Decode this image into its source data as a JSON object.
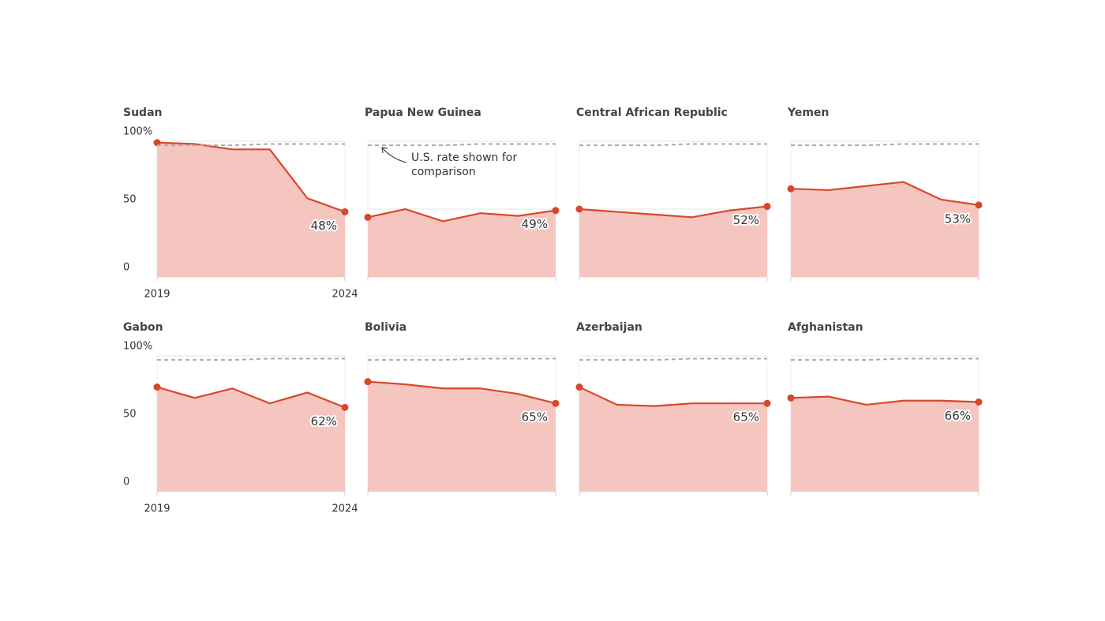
{
  "chart_data": [
    {
      "type": "area",
      "title": "Sudan",
      "x": [
        2019,
        2020,
        2021,
        2022,
        2023,
        2024
      ],
      "xticks": [
        2019,
        2024
      ],
      "ylim": [
        0,
        100
      ],
      "yticks": [
        {
          "value": 100,
          "label": "100%"
        },
        50,
        0
      ],
      "grid": true,
      "series": [
        {
          "color": "#d9472b",
          "values": [
            99,
            98,
            94,
            94,
            58,
            48
          ],
          "value_labels": [
            null,
            null,
            null,
            null,
            null,
            "48%"
          ]
        },
        {
          "color": "#aaaaaa",
          "dashed": true,
          "values": [
            97,
            97,
            97,
            98,
            98,
            98
          ]
        }
      ]
    },
    {
      "type": "area",
      "title": "Papua New Guinea",
      "x": [
        2019,
        2020,
        2021,
        2022,
        2023,
        2024
      ],
      "ylim": [
        0,
        100
      ],
      "grid": true,
      "annotation": "U.S. rate shown for comparison",
      "series": [
        {
          "color": "#d9472b",
          "values": [
            44,
            50,
            41,
            47,
            45,
            49
          ],
          "value_labels": [
            null,
            null,
            null,
            null,
            null,
            "49%"
          ]
        },
        {
          "color": "#aaaaaa",
          "dashed": true,
          "values": [
            97,
            97,
            97,
            98,
            98,
            98
          ]
        }
      ]
    },
    {
      "type": "area",
      "title": "Central African Republic",
      "x": [
        2019,
        2020,
        2021,
        2022,
        2023,
        2024
      ],
      "ylim": [
        0,
        100
      ],
      "grid": true,
      "series": [
        {
          "color": "#d9472b",
          "values": [
            50,
            48,
            46,
            44,
            49,
            52
          ],
          "value_labels": [
            null,
            null,
            null,
            null,
            null,
            "52%"
          ]
        },
        {
          "color": "#aaaaaa",
          "dashed": true,
          "values": [
            97,
            97,
            97,
            98,
            98,
            98
          ]
        }
      ]
    },
    {
      "type": "area",
      "title": "Yemen",
      "x": [
        2019,
        2020,
        2021,
        2022,
        2023,
        2024
      ],
      "ylim": [
        0,
        100
      ],
      "grid": true,
      "series": [
        {
          "color": "#d9472b",
          "values": [
            65,
            64,
            67,
            70,
            57,
            53
          ],
          "value_labels": [
            null,
            null,
            null,
            null,
            null,
            "53%"
          ]
        },
        {
          "color": "#aaaaaa",
          "dashed": true,
          "values": [
            97,
            97,
            97,
            98,
            98,
            98
          ]
        }
      ]
    },
    {
      "type": "area",
      "title": "Gabon",
      "x": [
        2019,
        2020,
        2021,
        2022,
        2023,
        2024
      ],
      "xticks": [
        2019,
        2024
      ],
      "ylim": [
        0,
        100
      ],
      "yticks": [
        {
          "value": 100,
          "label": "100%"
        },
        50,
        0
      ],
      "grid": true,
      "series": [
        {
          "color": "#d9472b",
          "values": [
            77,
            69,
            76,
            65,
            73,
            62
          ],
          "value_labels": [
            null,
            null,
            null,
            null,
            null,
            "62%"
          ]
        },
        {
          "color": "#aaaaaa",
          "dashed": true,
          "values": [
            97,
            97,
            97,
            98,
            98,
            98
          ]
        }
      ]
    },
    {
      "type": "area",
      "title": "Bolivia",
      "x": [
        2019,
        2020,
        2021,
        2022,
        2023,
        2024
      ],
      "ylim": [
        0,
        100
      ],
      "grid": true,
      "series": [
        {
          "color": "#d9472b",
          "values": [
            81,
            79,
            76,
            76,
            72,
            65
          ],
          "value_labels": [
            null,
            null,
            null,
            null,
            null,
            "65%"
          ]
        },
        {
          "color": "#aaaaaa",
          "dashed": true,
          "values": [
            97,
            97,
            97,
            98,
            98,
            98
          ]
        }
      ]
    },
    {
      "type": "area",
      "title": "Azerbaijan",
      "x": [
        2019,
        2020,
        2021,
        2022,
        2023,
        2024
      ],
      "ylim": [
        0,
        100
      ],
      "grid": true,
      "series": [
        {
          "color": "#d9472b",
          "values": [
            77,
            64,
            63,
            65,
            65,
            65
          ],
          "value_labels": [
            null,
            null,
            null,
            null,
            null,
            "65%"
          ]
        },
        {
          "color": "#aaaaaa",
          "dashed": true,
          "values": [
            97,
            97,
            97,
            98,
            98,
            98
          ]
        }
      ]
    },
    {
      "type": "area",
      "title": "Afghanistan",
      "x": [
        2019,
        2020,
        2021,
        2022,
        2023,
        2024
      ],
      "ylim": [
        0,
        100
      ],
      "grid": true,
      "series": [
        {
          "color": "#d9472b",
          "values": [
            69,
            70,
            64,
            67,
            67,
            66
          ],
          "value_labels": [
            null,
            null,
            null,
            null,
            null,
            "66%"
          ]
        },
        {
          "color": "#aaaaaa",
          "dashed": true,
          "values": [
            97,
            97,
            97,
            98,
            98,
            98
          ]
        }
      ]
    }
  ]
}
